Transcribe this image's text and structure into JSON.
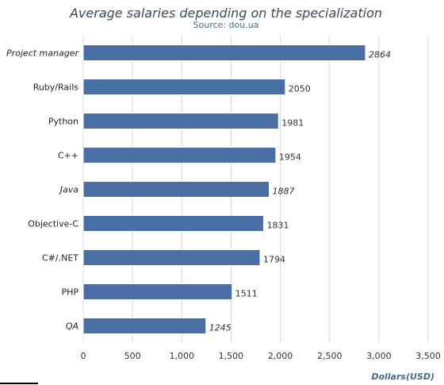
{
  "chart_data": {
    "type": "bar",
    "orientation": "horizontal",
    "title": "Average salaries depending on the specialization",
    "subtitle": "Source: dou.ua",
    "categories": [
      "Project manager",
      "Ruby/Rails",
      "Python",
      "C++",
      "Java",
      "Objective-C",
      "C#/.NET",
      "PHP",
      "QA"
    ],
    "italic_categories": [
      "Project manager",
      "Java",
      "QA"
    ],
    "values": [
      2864,
      2050,
      1981,
      1954,
      1887,
      1831,
      1794,
      1511,
      1245
    ],
    "value_labels": [
      "2864",
      "2050",
      "1981",
      "1954",
      "1887",
      "1831",
      "1794",
      "1511",
      "1245"
    ],
    "xlabel": "Dollars(USD)",
    "ylabel": "",
    "xlim": [
      0,
      3500
    ],
    "x_ticks": [
      0,
      500,
      1000,
      1500,
      2000,
      2500,
      3000,
      3500
    ],
    "x_tick_labels": [
      "0",
      "500",
      "1,000",
      "1,500",
      "2,000",
      "2,500",
      "3,000",
      "3,500"
    ],
    "grid": "vertical",
    "legend": "none",
    "colors": {
      "bar": "#4a6fa5",
      "grid": "#d8d8d8",
      "title": "#3a4a5e",
      "subtitle": "#4a6a8a"
    }
  }
}
